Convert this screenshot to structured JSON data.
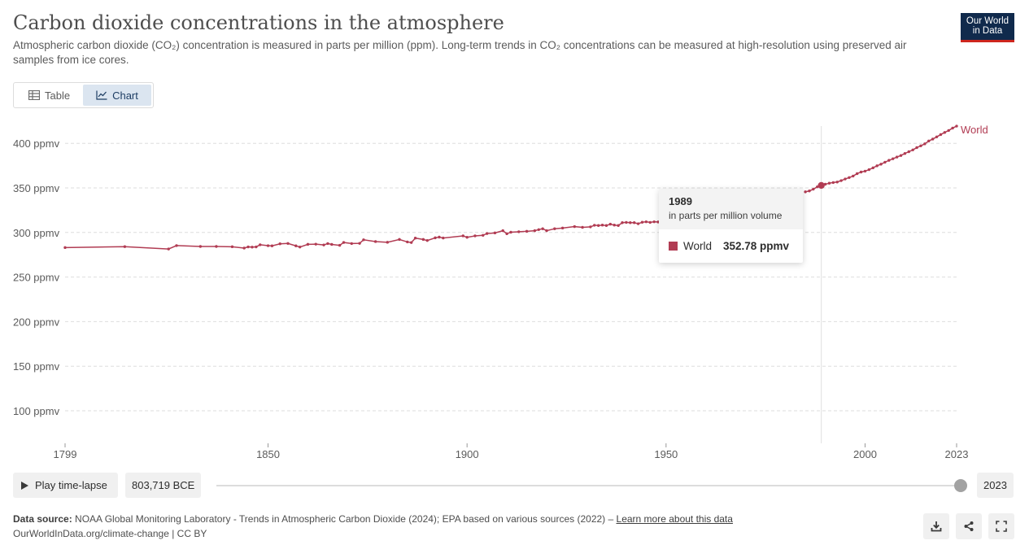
{
  "header": {
    "title": "Carbon dioxide concentrations in the atmosphere",
    "subtitle": "Atmospheric carbon dioxide (CO₂) concentration is measured in parts per million (ppm). Long-term trends in CO₂ concentrations can be measured at high-resolution using preserved air samples from ice cores.",
    "logo_line1": "Our World",
    "logo_line2": "in Data"
  },
  "tabs": [
    {
      "label": "Table",
      "icon": "table-icon"
    },
    {
      "label": "Chart",
      "icon": "line-chart-icon",
      "active": true
    }
  ],
  "tooltip": {
    "year": "1989",
    "unit": "in parts per million volume",
    "series": "World",
    "value": "352.78 ppmv"
  },
  "timeline": {
    "play_label": "Play time-lapse",
    "start_label": "803,719 BCE",
    "end_label": "2023"
  },
  "footer": {
    "source_label": "Data source:",
    "source_text": "NOAA Global Monitoring Laboratory - Trends in Atmospheric Carbon Dioxide (2024); EPA based on various sources (2022) –",
    "learn_more": "Learn more about this data",
    "credit": "OurWorldInData.org/climate-change | CC BY"
  },
  "colors": {
    "series": "#b13c53",
    "grid": "#dddddd",
    "hover_line": "#e0e0e0"
  },
  "chart_data": {
    "type": "line",
    "xlim": [
      1799,
      2023
    ],
    "ylim": [
      70,
      420
    ],
    "grid": true,
    "legend": "right-end-label",
    "y_ticks": [
      {
        "value": 100,
        "label": "100 ppmv"
      },
      {
        "value": 150,
        "label": "150 ppmv"
      },
      {
        "value": 200,
        "label": "200 ppmv"
      },
      {
        "value": 250,
        "label": "250 ppmv"
      },
      {
        "value": 300,
        "label": "300 ppmv"
      },
      {
        "value": 350,
        "label": "350 ppmv"
      },
      {
        "value": 400,
        "label": "400 ppmv"
      }
    ],
    "x_ticks": [
      {
        "value": 1799,
        "label": "1799"
      },
      {
        "value": 1850,
        "label": "1850"
      },
      {
        "value": 1900,
        "label": "1900"
      },
      {
        "value": 1950,
        "label": "1950"
      },
      {
        "value": 2000,
        "label": "2000"
      },
      {
        "value": 2023,
        "label": "2023"
      }
    ],
    "highlight": {
      "x": 1989,
      "y": 352.78
    },
    "series": [
      {
        "name": "World",
        "points": [
          [
            1799,
            283.1
          ],
          [
            1814,
            284.1
          ],
          [
            1825,
            281.5
          ],
          [
            1827,
            285.3
          ],
          [
            1833,
            284.3
          ],
          [
            1837,
            284.3
          ],
          [
            1841,
            284.0
          ],
          [
            1844,
            282.5
          ],
          [
            1845,
            283.8
          ],
          [
            1846,
            283.6
          ],
          [
            1847,
            283.8
          ],
          [
            1848,
            286.2
          ],
          [
            1850,
            285.2
          ],
          [
            1851,
            285.0
          ],
          [
            1853,
            287.3
          ],
          [
            1855,
            287.7
          ],
          [
            1857,
            285.0
          ],
          [
            1858,
            283.7
          ],
          [
            1860,
            286.7
          ],
          [
            1862,
            286.9
          ],
          [
            1864,
            286.0
          ],
          [
            1865,
            287.6
          ],
          [
            1866,
            286.6
          ],
          [
            1868,
            285.6
          ],
          [
            1869,
            288.8
          ],
          [
            1871,
            287.6
          ],
          [
            1873,
            287.8
          ],
          [
            1874,
            291.8
          ],
          [
            1877,
            289.8
          ],
          [
            1880,
            289.0
          ],
          [
            1883,
            292.2
          ],
          [
            1885,
            289.4
          ],
          [
            1886,
            288.7
          ],
          [
            1887,
            293.7
          ],
          [
            1889,
            292.2
          ],
          [
            1890,
            291.0
          ],
          [
            1892,
            294.0
          ],
          [
            1893,
            294.8
          ],
          [
            1894,
            293.8
          ],
          [
            1899,
            296.2
          ],
          [
            1900,
            294.6
          ],
          [
            1902,
            296.2
          ],
          [
            1904,
            296.8
          ],
          [
            1905,
            298.8
          ],
          [
            1907,
            299.5
          ],
          [
            1909,
            302.0
          ],
          [
            1910,
            298.6
          ],
          [
            1911,
            300.3
          ],
          [
            1913,
            300.8
          ],
          [
            1915,
            301.3
          ],
          [
            1917,
            302.0
          ],
          [
            1918,
            303.2
          ],
          [
            1919,
            304.2
          ],
          [
            1920,
            302.0
          ],
          [
            1922,
            304.2
          ],
          [
            1924,
            305.0
          ],
          [
            1927,
            306.6
          ],
          [
            1929,
            305.8
          ],
          [
            1931,
            306.3
          ],
          [
            1932,
            308.1
          ],
          [
            1933,
            307.8
          ],
          [
            1934,
            308.3
          ],
          [
            1935,
            307.8
          ],
          [
            1936,
            309.3
          ],
          [
            1937,
            308.3
          ],
          [
            1938,
            307.8
          ],
          [
            1939,
            311.0
          ],
          [
            1940,
            311.3
          ],
          [
            1941,
            311.0
          ],
          [
            1942,
            311.0
          ],
          [
            1943,
            309.8
          ],
          [
            1944,
            311.5
          ],
          [
            1945,
            312.0
          ],
          [
            1946,
            311.3
          ],
          [
            1947,
            312.0
          ],
          [
            1948,
            311.8
          ],
          [
            1949,
            312.0
          ],
          [
            1985,
            345.6
          ],
          [
            1986,
            346.6
          ],
          [
            1987,
            348.6
          ],
          [
            1988,
            351.2
          ],
          [
            1989,
            352.78
          ],
          [
            1990,
            354.1
          ],
          [
            1991,
            355.3
          ],
          [
            1992,
            356.0
          ],
          [
            1993,
            356.6
          ],
          [
            1994,
            358.2
          ],
          [
            1995,
            360.0
          ],
          [
            1996,
            361.6
          ],
          [
            1997,
            363.3
          ],
          [
            1998,
            366.0
          ],
          [
            1999,
            367.8
          ],
          [
            2000,
            368.8
          ],
          [
            2001,
            370.5
          ],
          [
            2002,
            372.5
          ],
          [
            2003,
            374.8
          ],
          [
            2004,
            376.6
          ],
          [
            2005,
            378.8
          ],
          [
            2006,
            380.9
          ],
          [
            2007,
            382.7
          ],
          [
            2008,
            384.6
          ],
          [
            2009,
            386.3
          ],
          [
            2010,
            388.6
          ],
          [
            2011,
            390.6
          ],
          [
            2012,
            392.6
          ],
          [
            2013,
            395.2
          ],
          [
            2014,
            397.2
          ],
          [
            2015,
            399.4
          ],
          [
            2016,
            402.6
          ],
          [
            2017,
            404.8
          ],
          [
            2018,
            407.2
          ],
          [
            2019,
            409.8
          ],
          [
            2020,
            412.2
          ],
          [
            2021,
            414.4
          ],
          [
            2022,
            417.1
          ],
          [
            2023,
            419.3
          ]
        ]
      }
    ]
  }
}
